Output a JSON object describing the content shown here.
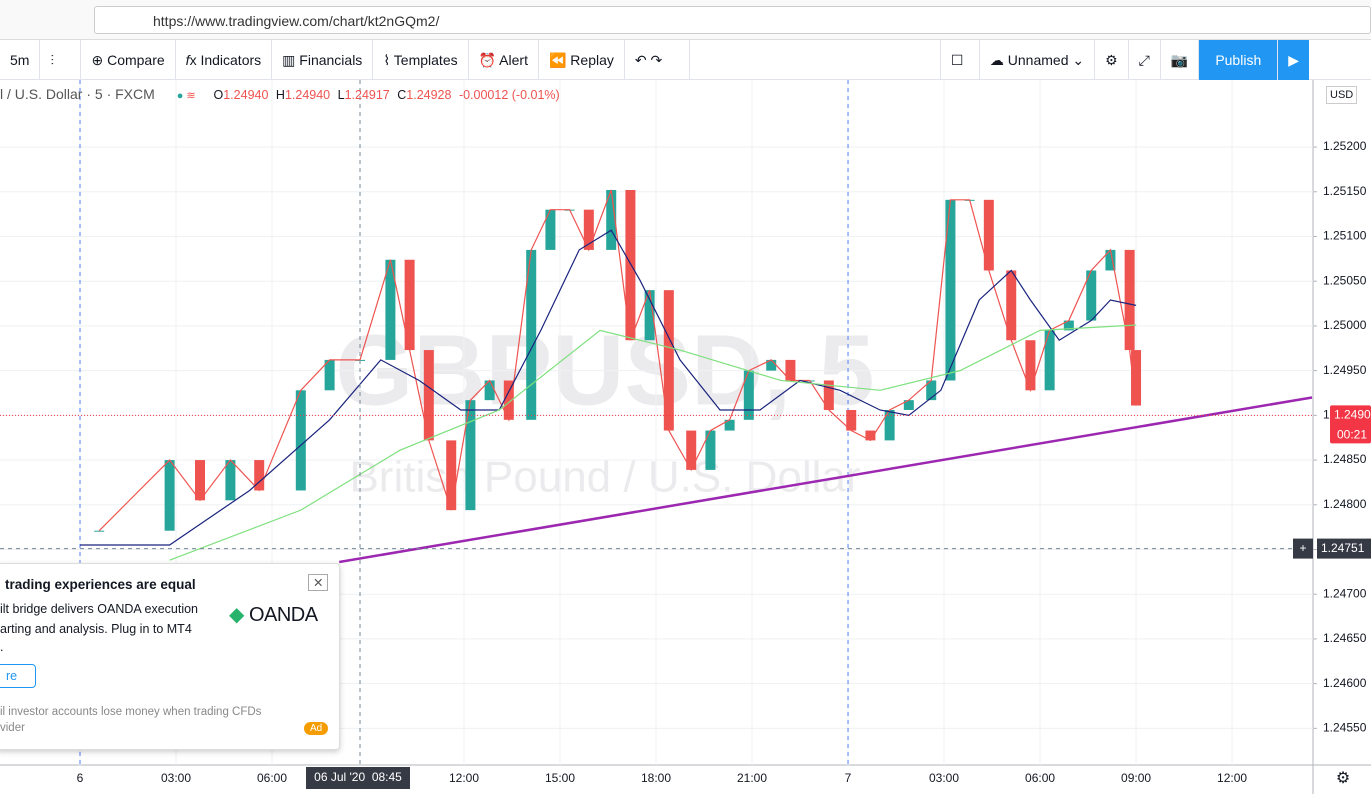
{
  "browser": {
    "url": "https://www.tradingview.com/chart/kt2nGQm2/"
  },
  "toolbar": {
    "interval": "5m",
    "compare": "Compare",
    "indicators": "Indicators",
    "financials": "Financials",
    "templates": "Templates",
    "alert": "Alert",
    "replay": "Replay",
    "layout": "Unnamed",
    "publish": "Publish"
  },
  "legend": {
    "symbol": "l / U.S. Dollar · 5 · FXCM",
    "o": "O",
    "o_value": "1.24940",
    "h": "H",
    "h_value": "1.24940",
    "l": "L",
    "l_value": "1.24917",
    "c": "C",
    "c_value": "1.24928",
    "change": "-0.00012 (-0.01%)"
  },
  "watermark": {
    "symbol": "GBPUSD, 5",
    "description": "British Pound / U.S. Dollar"
  },
  "currency": "USD",
  "ad": {
    "title": "trading experiences are equal",
    "line1": "ilt bridge delivers OANDA execution",
    "line2": "arting and analysis. Plug in to MT4",
    "line3": ".",
    "button": "re",
    "disclaimer1": "il investor accounts lose money when trading CFDs",
    "disclaimer2": "vider",
    "brand": "OANDA",
    "badge": "Ad"
  },
  "chart_data": {
    "type": "candlestick",
    "xlim": [
      -2.5,
      38.53
    ],
    "ylim": [
      1.24509,
      1.25275
    ],
    "xticks": [
      {
        "value": 0,
        "label": "6"
      },
      {
        "value": 3,
        "label": "03:00"
      },
      {
        "value": 6,
        "label": "06:00"
      },
      {
        "value": 12,
        "label": "12:00"
      },
      {
        "value": 15,
        "label": "15:00"
      },
      {
        "value": 18,
        "label": "18:00"
      },
      {
        "value": 21,
        "label": "21:00"
      },
      {
        "value": 24,
        "label": "7"
      },
      {
        "value": 27,
        "label": "03:00"
      },
      {
        "value": 30,
        "label": "06:00"
      },
      {
        "value": 33,
        "label": "09:00"
      },
      {
        "value": 36,
        "label": "12:00"
      }
    ],
    "yticks": [
      {
        "value": 1.2455,
        "label": "1.24550"
      },
      {
        "value": 1.246,
        "label": "1.24600"
      },
      {
        "value": 1.2465,
        "label": "1.24650"
      },
      {
        "value": 1.247,
        "label": "1.24700"
      },
      {
        "value": 1.2475,
        "label": "1.24750"
      },
      {
        "value": 1.248,
        "label": "1.24800"
      },
      {
        "value": 1.2485,
        "label": "1.24850"
      },
      {
        "value": 1.249,
        "label": "1.24900"
      },
      {
        "value": 1.2495,
        "label": "1.24950"
      },
      {
        "value": 1.25,
        "label": "1.25000"
      },
      {
        "value": 1.2505,
        "label": "1.25050"
      },
      {
        "value": 1.251,
        "label": "1.25100"
      },
      {
        "value": 1.2515,
        "label": "1.25150"
      },
      {
        "value": 1.252,
        "label": "1.25200"
      }
    ],
    "grid": true,
    "up_color": "#26a69a",
    "down_color": "#ef5350",
    "series": [
      {
        "color": "#ef5350",
        "x": [
          0.6,
          2.8,
          3.75,
          4.7,
          5.6,
          6.9,
          7.8,
          8.75,
          9.7,
          10.3,
          10.9,
          11.6,
          12.2,
          12.8,
          13.4,
          14.1,
          14.7,
          15.3,
          15.9,
          16.6,
          17.2,
          17.8,
          18.4,
          19.1,
          19.7,
          20.3,
          20.9,
          21.6,
          22.2,
          22.8,
          23.4,
          24.1,
          24.7,
          25.3,
          25.9,
          26.6,
          27.2,
          27.8,
          28.4,
          29.1,
          29.7,
          30.3,
          30.9,
          31.6,
          32.2,
          32.8,
          33.0
        ],
        "values": [
          1.24771,
          1.2485,
          1.24805,
          1.2485,
          1.24816,
          1.24928,
          1.24962,
          1.24962,
          1.25074,
          1.24973,
          1.24872,
          1.24794,
          1.24917,
          1.24939,
          1.24895,
          1.25085,
          1.2513,
          1.2513,
          1.25085,
          1.25152,
          1.24984,
          1.2504,
          1.24883,
          1.24839,
          1.24883,
          1.24895,
          1.2495,
          1.24962,
          1.24939,
          1.24939,
          1.24906,
          1.24883,
          1.24872,
          1.24906,
          1.24917,
          1.24939,
          1.25141,
          1.25141,
          1.25062,
          1.24984,
          1.24928,
          1.24995,
          1.25006,
          1.25062,
          1.25085,
          1.24973,
          1.24911
        ]
      },
      {
        "color": "#1a237e",
        "x": [
          0,
          2.8,
          5.3,
          7.8,
          9.4,
          10.6,
          11.9,
          13.1,
          14.4,
          15.6,
          16.6,
          17.5,
          18.75,
          20,
          21.25,
          22.5,
          23.75,
          25,
          25.9,
          26.9,
          28.1,
          29.1,
          29.7,
          30.6,
          31.6,
          32.2,
          33.0
        ],
        "values": [
          1.24755,
          1.24755,
          1.24816,
          1.24895,
          1.24962,
          1.24939,
          1.24906,
          1.24906,
          1.24995,
          1.25085,
          1.25107,
          1.25051,
          1.24962,
          1.24906,
          1.24906,
          1.24939,
          1.24928,
          1.24906,
          1.249,
          1.24928,
          1.25029,
          1.25062,
          1.25029,
          1.24984,
          1.25006,
          1.25029,
          1.25023
        ]
      },
      {
        "color": "#7ee07e",
        "x": [
          2.8,
          6.9,
          10,
          13.1,
          16.25,
          18.75,
          21.9,
          25,
          27.5,
          30,
          33.0
        ],
        "values": [
          1.24738,
          1.24794,
          1.24861,
          1.24906,
          1.24995,
          1.24973,
          1.24939,
          1.24928,
          1.2495,
          1.24995,
          1.25001
        ]
      }
    ],
    "trendline": {
      "color": "#9c27b0",
      "x": [
        8.1,
        38.5
      ],
      "values": [
        1.24736,
        1.2492
      ]
    },
    "last_price": {
      "value": 1.249,
      "label": "1.24900",
      "countdown": "00:21",
      "color": "#f23645"
    },
    "crosshair": {
      "y": {
        "value": 1.24751,
        "label": "1.24751"
      },
      "x": {
        "value": 8.75,
        "label": "06 Jul '20  08:45"
      }
    }
  }
}
